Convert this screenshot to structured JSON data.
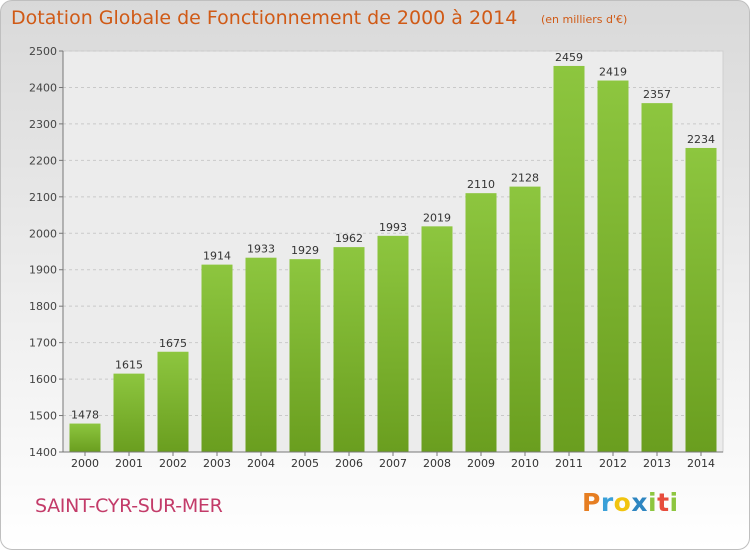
{
  "chart_data": {
    "type": "bar",
    "title": "Dotation Globale de Fonctionnement de 2000 à 2014",
    "subtitle": "(en milliers d'€)",
    "categories": [
      "2000",
      "2001",
      "2002",
      "2003",
      "2004",
      "2005",
      "2006",
      "2007",
      "2008",
      "2009",
      "2010",
      "2011",
      "2012",
      "2013",
      "2014"
    ],
    "values": [
      1478,
      1615,
      1675,
      1914,
      1933,
      1929,
      1962,
      1993,
      2019,
      2110,
      2128,
      2459,
      2419,
      2357,
      2234
    ],
    "ylim": [
      1400,
      2500
    ],
    "yticks": [
      1400,
      1500,
      1600,
      1700,
      1800,
      1900,
      2000,
      2100,
      2200,
      2300,
      2400,
      2500
    ],
    "grid": true,
    "bar_color": "#8dc63f",
    "bar_color_dark": "#6a9e1f"
  },
  "footer": {
    "commune": "SAINT-CYR-SUR-MER",
    "brand_letters": [
      "P",
      "r",
      "o",
      "x",
      "i",
      "t",
      "i"
    ],
    "brand_colors": [
      "#e67e22",
      "#3aa0d8",
      "#f1c40f",
      "#2e86c1",
      "#8dc63f",
      "#e74c3c",
      "#8dc63f"
    ]
  }
}
